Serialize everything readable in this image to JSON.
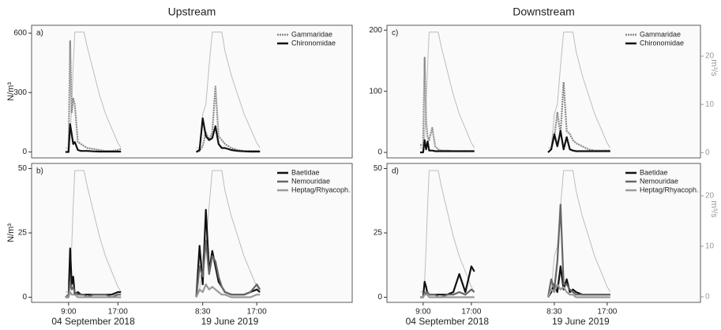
{
  "chart_data": [
    {
      "type": "line",
      "title": "Upstream",
      "label": "a)",
      "ylabel": "N/m³",
      "xlim": [
        [
          3,
          29
        ],
        [
          6.8,
          32
        ]
      ],
      "x": [
        [
          8.5,
          9,
          9.25,
          9.5,
          9.75,
          10,
          10.5,
          11,
          11.5,
          12,
          13,
          14,
          15,
          16,
          17,
          17.5
        ],
        [
          7.5,
          8,
          8.5,
          9,
          9.5,
          10,
          10.5,
          11,
          11.5,
          12,
          13,
          14,
          15,
          16,
          17,
          17.5
        ]
      ],
      "ylim": [
        -30,
        640
      ],
      "yticks": [
        0,
        300,
        600
      ],
      "y2lim": [
        -1.1,
        26.4
      ],
      "series": [
        {
          "name": "Gammaridae",
          "color": "#8a8a8a",
          "dash": "2,1",
          "values": [
            [
              0,
              0,
              560,
              200,
              270,
              240,
              50,
              40,
              30,
              20,
              15,
              10,
              5,
              5,
              10,
              15
            ],
            [
              0,
              5,
              30,
              100,
              60,
              100,
              330,
              80,
              60,
              40,
              20,
              10,
              5,
              5,
              5,
              5
            ]
          ]
        },
        {
          "name": "Chironomidae",
          "color": "#111111",
          "values": [
            [
              0,
              0,
              140,
              90,
              40,
              50,
              10,
              5,
              5,
              5,
              3,
              2,
              2,
              2,
              2,
              2
            ],
            [
              0,
              10,
              170,
              80,
              60,
              70,
              130,
              40,
              20,
              20,
              10,
              5,
              3,
              2,
              2,
              2
            ]
          ]
        },
        {
          "color": "#bdbdbd",
          "axis": "y2",
          "values": [
            [
              1,
              1,
              3,
              10,
              18,
              25,
              25,
              25,
              25,
              22,
              17,
              12,
              8,
              5,
              2,
              1
            ],
            [
              1,
              1,
              8,
              10,
              18,
              25,
              25,
              25,
              25,
              21,
              16,
              12,
              8,
              5,
              2,
              1
            ]
          ]
        }
      ]
    },
    {
      "type": "line",
      "label": "b)",
      "ylabel": "N/m³",
      "xlim": [
        [
          3,
          29
        ],
        [
          6.8,
          32
        ]
      ],
      "x": [
        [
          8.5,
          9,
          9.25,
          9.5,
          9.75,
          10,
          10.5,
          11,
          11.5,
          12,
          13,
          14,
          15,
          16,
          17,
          17.5
        ],
        [
          7.5,
          8,
          8.5,
          9,
          9.5,
          10,
          10.5,
          11,
          11.5,
          12,
          13,
          14,
          15,
          16,
          17,
          17.5
        ]
      ],
      "xticks": [
        [
          {
            "value": 9,
            "label": "9:00"
          },
          {
            "value": 17,
            "label": "17:00"
          }
        ],
        [
          {
            "value": 8.5,
            "label": "8:30"
          },
          {
            "value": 17,
            "label": "17:00"
          }
        ]
      ],
      "dates": [
        "04 September 2018",
        "19 June 2019"
      ],
      "ylim": [
        -2,
        52
      ],
      "yticks": [
        0,
        25,
        50
      ],
      "y2lim": [
        -1.1,
        26.4
      ],
      "series": [
        {
          "name": "Baetidae",
          "color": "#111111",
          "values": [
            [
              0,
              0,
              19,
              5,
              8,
              1,
              2,
              1,
              1,
              1,
              1,
              1,
              1,
              1,
              2,
              2
            ],
            [
              0,
              20,
              5,
              34,
              10,
              18,
              12,
              6,
              4,
              2,
              1,
              1,
              1,
              2,
              3,
              2
            ]
          ]
        },
        {
          "name": "Nemouridae",
          "color": "#666666",
          "values": [
            [
              0,
              1,
              6,
              3,
              4,
              2,
              1,
              1,
              1,
              0,
              1,
              1,
              1,
              0,
              1,
              1
            ],
            [
              0,
              12,
              8,
              22,
              9,
              16,
              14,
              8,
              4,
              2,
              1,
              1,
              1,
              2,
              5,
              3
            ]
          ]
        },
        {
          "name": "Heptag/Rhyacoph.",
          "color": "#9a9a9a",
          "values": [
            [
              0,
              0,
              2,
              1,
              1,
              1,
              0,
              0,
              0,
              0,
              0,
              0,
              0,
              0,
              0,
              0
            ],
            [
              0,
              3,
              2,
              5,
              3,
              4,
              3,
              2,
              1,
              1,
              0,
              0,
              0,
              0,
              1,
              1
            ]
          ]
        },
        {
          "color": "#bdbdbd",
          "axis": "y2",
          "values": [
            [
              1,
              1,
              3,
              10,
              18,
              25,
              25,
              25,
              25,
              22,
              17,
              12,
              8,
              5,
              2,
              1
            ],
            [
              1,
              1,
              8,
              10,
              18,
              25,
              25,
              25,
              25,
              21,
              16,
              12,
              8,
              5,
              2,
              1
            ]
          ]
        }
      ]
    },
    {
      "type": "line",
      "title": "Downstream",
      "label": "c)",
      "y2label": "m³/s",
      "xlim": [
        [
          3,
          29
        ],
        [
          6.8,
          32
        ]
      ],
      "x": [
        [
          8.5,
          9,
          9.25,
          9.5,
          9.75,
          10,
          10.5,
          11,
          11.5,
          12,
          13,
          14,
          15,
          16,
          17,
          17.5
        ],
        [
          7.5,
          8,
          8.5,
          9,
          9.5,
          10,
          10.5,
          11,
          11.5,
          12,
          13,
          14,
          15,
          16,
          17,
          17.5
        ]
      ],
      "ylim": [
        -9,
        208
      ],
      "yticks": [
        0,
        100,
        200
      ],
      "y2lim": [
        -1.1,
        26.4
      ],
      "y2ticks": [
        0,
        10,
        20
      ],
      "series": [
        {
          "name": "Gammaridae",
          "color": "#8a8a8a",
          "dash": "2,1",
          "values": [
            [
              12,
              12,
              155,
              50,
              25,
              20,
              40,
              10,
              5,
              3,
              3,
              2,
              2,
              2,
              2,
              2
            ],
            [
              0,
              5,
              25,
              65,
              30,
              115,
              35,
              30,
              20,
              15,
              10,
              5,
              3,
              3,
              3,
              3
            ]
          ]
        },
        {
          "name": "Chironomidae",
          "color": "#111111",
          "values": [
            [
              0,
              0,
              20,
              5,
              18,
              3,
              3,
              2,
              2,
              2,
              2,
              2,
              2,
              2,
              2,
              2
            ],
            [
              0,
              5,
              30,
              10,
              35,
              5,
              25,
              5,
              3,
              2,
              2,
              2,
              2,
              2,
              2,
              2
            ]
          ]
        },
        {
          "color": "#bdbdbd",
          "axis": "y2",
          "values": [
            [
              1,
              1,
              3,
              10,
              18,
              25,
              25,
              25,
              25,
              22,
              17,
              12,
              8,
              5,
              2,
              1
            ],
            [
              1,
              1,
              8,
              10,
              18,
              25,
              25,
              25,
              25,
              21,
              16,
              12,
              8,
              5,
              2,
              1
            ]
          ]
        }
      ]
    },
    {
      "type": "line",
      "label": "d)",
      "y2label": "m³/s",
      "xlim": [
        [
          3,
          29
        ],
        [
          6.8,
          32
        ]
      ],
      "x": [
        [
          8.5,
          9,
          9.25,
          9.5,
          9.75,
          10,
          10.5,
          11,
          11.5,
          12,
          13,
          14,
          15,
          16,
          17,
          17.5
        ],
        [
          7.5,
          8,
          8.5,
          9,
          9.5,
          10,
          10.5,
          11,
          11.5,
          12,
          13,
          14,
          15,
          16,
          17,
          17.5
        ]
      ],
      "xticks": [
        [
          {
            "value": 9,
            "label": "9:00"
          },
          {
            "value": 17,
            "label": "17:00"
          }
        ],
        [
          {
            "value": 8.5,
            "label": "8:30"
          },
          {
            "value": 17,
            "label": "17:00"
          }
        ]
      ],
      "dates": [
        "04 September 2018",
        "19 June 2019"
      ],
      "ylim": [
        -2,
        52
      ],
      "yticks": [
        0,
        25,
        50
      ],
      "y2lim": [
        -1.1,
        26.4
      ],
      "y2ticks": [
        0,
        10,
        20
      ],
      "series": [
        {
          "name": "Baetidae",
          "color": "#111111",
          "values": [
            [
              0,
              0,
              6,
              4,
              1,
              1,
              1,
              1,
              1,
              1,
              1,
              2,
              9,
              2,
              12,
              10
            ],
            [
              0,
              2,
              5,
              2,
              12,
              3,
              7,
              2,
              3,
              2,
              1,
              1,
              1,
              1,
              1,
              1
            ]
          ]
        },
        {
          "name": "Nemouridae",
          "color": "#666666",
          "values": [
            [
              0,
              0,
              2,
              1,
              2,
              1,
              1,
              1,
              0,
              0,
              1,
              1,
              2,
              1,
              3,
              2
            ],
            [
              0,
              7,
              3,
              14,
              36,
              5,
              5,
              3,
              2,
              1,
              1,
              1,
              1,
              1,
              1,
              1
            ]
          ]
        },
        {
          "name": "Heptag/Rhyacoph.",
          "color": "#9a9a9a",
          "values": [
            [
              0,
              0,
              1,
              1,
              1,
              0,
              0,
              0,
              0,
              0,
              0,
              0,
              0,
              0,
              0,
              0
            ],
            [
              0,
              3,
              2,
              5,
              3,
              4,
              2,
              1,
              1,
              0,
              0,
              0,
              0,
              0,
              0,
              0
            ]
          ]
        },
        {
          "color": "#bdbdbd",
          "axis": "y2",
          "values": [
            [
              1,
              1,
              3,
              10,
              18,
              25,
              25,
              25,
              25,
              22,
              17,
              12,
              8,
              5,
              2,
              1
            ],
            [
              1,
              1,
              8,
              10,
              18,
              25,
              25,
              25,
              25,
              21,
              16,
              12,
              8,
              5,
              2,
              1
            ]
          ]
        }
      ]
    }
  ]
}
